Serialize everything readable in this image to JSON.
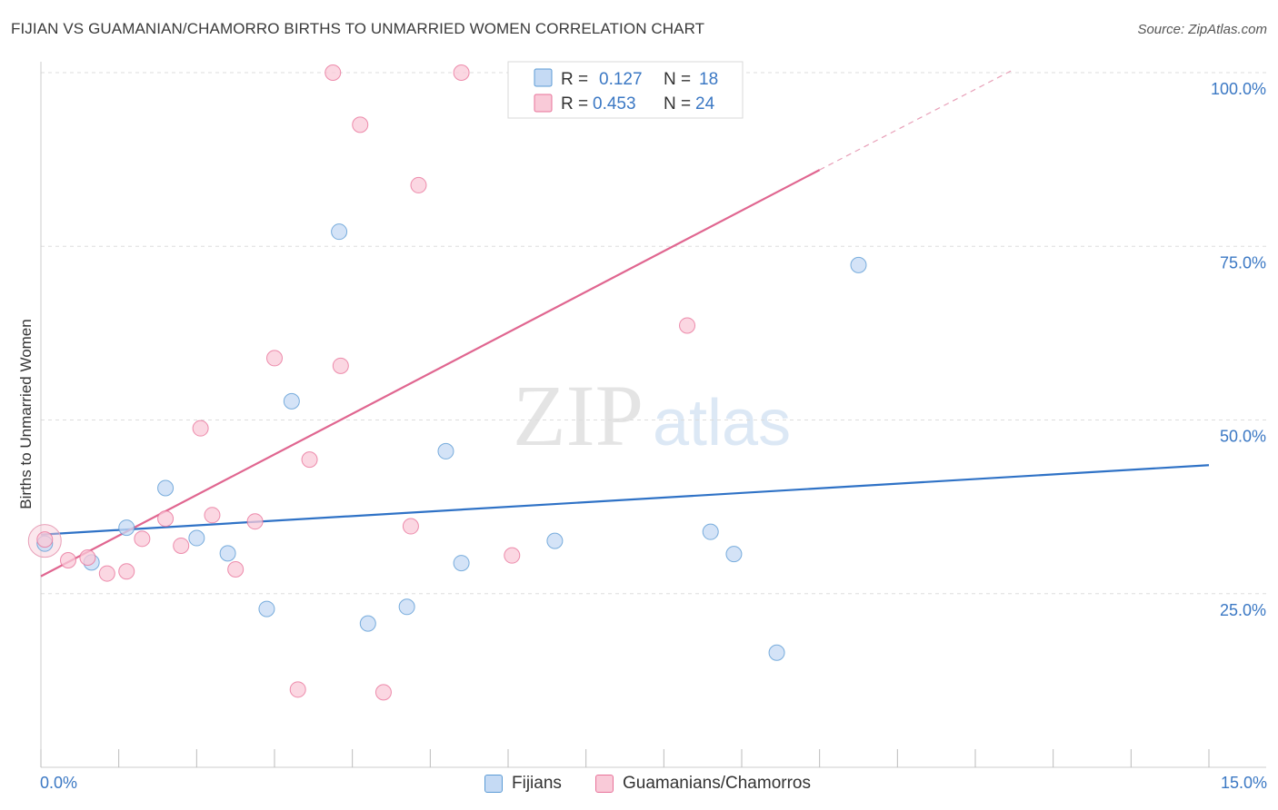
{
  "header": {
    "title": "FIJIAN VS GUAMANIAN/CHAMORRO BIRTHS TO UNMARRIED WOMEN CORRELATION CHART",
    "source": "Source: ZipAtlas.com"
  },
  "watermark": {
    "part1": "ZIP",
    "part2": "atlas"
  },
  "chart_data": {
    "type": "scatter",
    "title": "FIJIAN VS GUAMANIAN/CHAMORRO BIRTHS TO UNMARRIED WOMEN CORRELATION CHART",
    "xlabel": "",
    "ylabel": "Births to Unmarried Women",
    "xlim": [
      0,
      15
    ],
    "ylim": [
      0,
      100
    ],
    "x_tick_labels": {
      "left": "0.0%",
      "right": "15.0%"
    },
    "y_ticks": [
      {
        "value": 25,
        "label": "25.0%"
      },
      {
        "value": 50,
        "label": "50.0%"
      },
      {
        "value": 75,
        "label": "75.0%"
      },
      {
        "value": 100,
        "label": "100.0%"
      }
    ],
    "grid": true,
    "legend_position": "top-center",
    "series": [
      {
        "name": "Fijians",
        "color": "#5b9bd5",
        "fill": "#c5daf4",
        "r_label": "R = ",
        "r_value": "0.127",
        "n_label": "N = ",
        "n_value": "18",
        "trend": {
          "x0": 0,
          "y0": 33.5,
          "x1": 15,
          "y1": 43.5
        },
        "points": [
          [
            0.05,
            32.2
          ],
          [
            0.65,
            29.5
          ],
          [
            1.1,
            34.5
          ],
          [
            1.6,
            40.2
          ],
          [
            2.0,
            33.0
          ],
          [
            2.4,
            30.8
          ],
          [
            2.9,
            22.8
          ],
          [
            3.22,
            52.7
          ],
          [
            3.83,
            77.1
          ],
          [
            4.2,
            20.7
          ],
          [
            4.7,
            23.1
          ],
          [
            5.2,
            45.5
          ],
          [
            5.4,
            29.4
          ],
          [
            6.6,
            32.6
          ],
          [
            8.6,
            33.9
          ],
          [
            8.9,
            30.7
          ],
          [
            9.45,
            16.5
          ],
          [
            10.5,
            72.3
          ]
        ]
      },
      {
        "name": "Guamanians/Chamorros",
        "color": "#e8739a",
        "fill": "#f9cad8",
        "r_label": "R = ",
        "r_value": "0.453",
        "n_label": "N = ",
        "n_value": "24",
        "trend": {
          "x0": 0,
          "y0": 27.5,
          "x1": 10.0,
          "y1": 86.0
        },
        "trend_dashed": {
          "x0": 10.0,
          "y0": 86.0,
          "x1": 12.5,
          "y1": 100.5
        },
        "points": [
          [
            0.05,
            32.8
          ],
          [
            0.35,
            29.8
          ],
          [
            0.6,
            30.2
          ],
          [
            0.85,
            27.9
          ],
          [
            1.1,
            28.2
          ],
          [
            1.3,
            32.9
          ],
          [
            1.6,
            35.8
          ],
          [
            1.8,
            31.9
          ],
          [
            2.05,
            48.8
          ],
          [
            2.2,
            36.3
          ],
          [
            2.5,
            28.5
          ],
          [
            2.75,
            35.4
          ],
          [
            3.0,
            58.9
          ],
          [
            3.3,
            11.2
          ],
          [
            3.45,
            44.3
          ],
          [
            3.75,
            100.0
          ],
          [
            3.85,
            57.8
          ],
          [
            4.1,
            92.5
          ],
          [
            4.4,
            10.8
          ],
          [
            4.75,
            34.7
          ],
          [
            4.85,
            83.8
          ],
          [
            5.4,
            100.0
          ],
          [
            6.05,
            30.5
          ],
          [
            8.3,
            63.6
          ]
        ]
      }
    ]
  }
}
